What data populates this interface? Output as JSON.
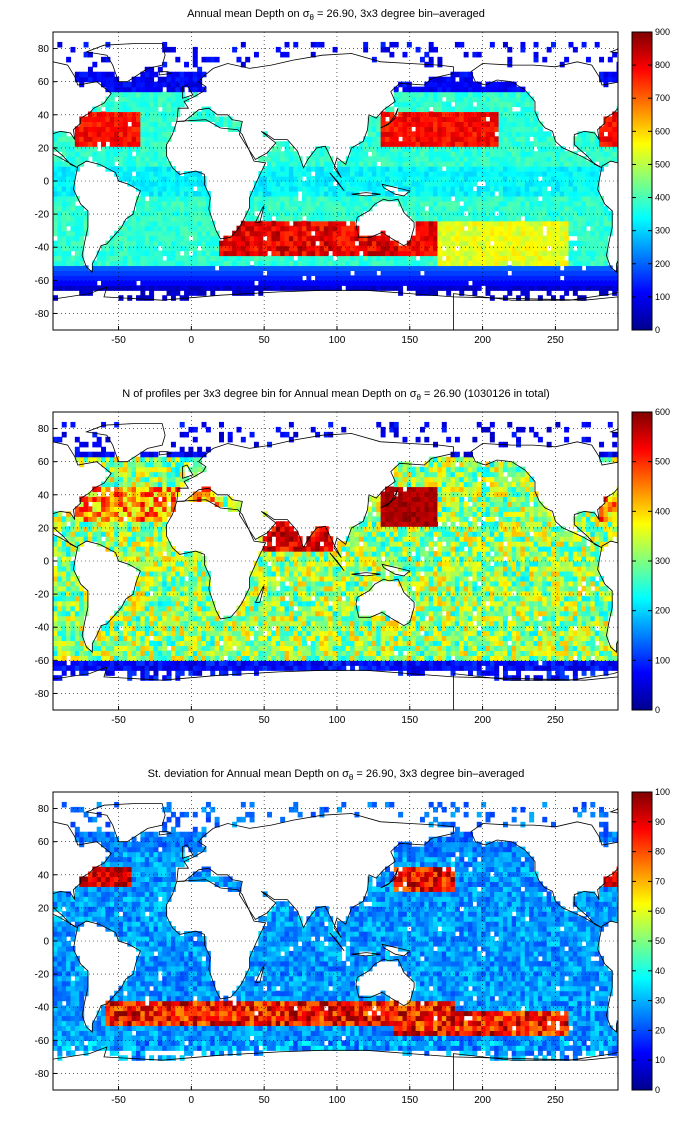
{
  "chart_data": [
    {
      "type": "heatmap",
      "title_prefix": "Annual mean Depth on ",
      "title_sigma": "σ",
      "title_sub": "θ",
      "title_suffix": " = 26.90, 3x3 degree bin–averaged",
      "x_ticks": [
        "-50",
        "0",
        "50",
        "100",
        "150",
        "200",
        "250"
      ],
      "y_ticks": [
        "80",
        "60",
        "40",
        "20",
        "0",
        "-20",
        "-40",
        "-60",
        "-80"
      ],
      "xlim": [
        -95,
        293
      ],
      "ylim": [
        -90,
        90
      ],
      "colorbar": {
        "min": 0,
        "max": 900,
        "ticks": [
          "900",
          "800",
          "700",
          "600",
          "500",
          "400",
          "300",
          "200",
          "100",
          "0"
        ]
      },
      "grid": true
    },
    {
      "type": "heatmap",
      "title_prefix": "N of profiles per 3x3 degree bin for Annual mean Depth on ",
      "title_sigma": "σ",
      "title_sub": "θ",
      "title_suffix": " = 26.90 (1030126 in total)",
      "x_ticks": [
        "-50",
        "0",
        "50",
        "100",
        "150",
        "200",
        "250"
      ],
      "y_ticks": [
        "80",
        "60",
        "40",
        "20",
        "0",
        "-20",
        "-40",
        "-60",
        "-80"
      ],
      "xlim": [
        -95,
        293
      ],
      "ylim": [
        -90,
        90
      ],
      "colorbar": {
        "min": 0,
        "max": 600,
        "ticks": [
          "600",
          "500",
          "400",
          "300",
          "200",
          "100",
          "0"
        ]
      },
      "grid": true
    },
    {
      "type": "heatmap",
      "title_prefix": "St. deviation for Annual mean Depth on ",
      "title_sigma": "σ",
      "title_sub": "θ",
      "title_suffix": " = 26.90, 3x3 degree bin–averaged",
      "x_ticks": [
        "-50",
        "0",
        "50",
        "100",
        "150",
        "200",
        "250"
      ],
      "y_ticks": [
        "80",
        "60",
        "40",
        "20",
        "0",
        "-20",
        "-40",
        "-60",
        "-80"
      ],
      "xlim": [
        -95,
        293
      ],
      "ylim": [
        -90,
        90
      ],
      "colorbar": {
        "min": 0,
        "max": 100,
        "ticks": [
          "100",
          "90",
          "80",
          "70",
          "60",
          "50",
          "40",
          "30",
          "20",
          "10",
          "0"
        ]
      },
      "grid": true
    }
  ]
}
